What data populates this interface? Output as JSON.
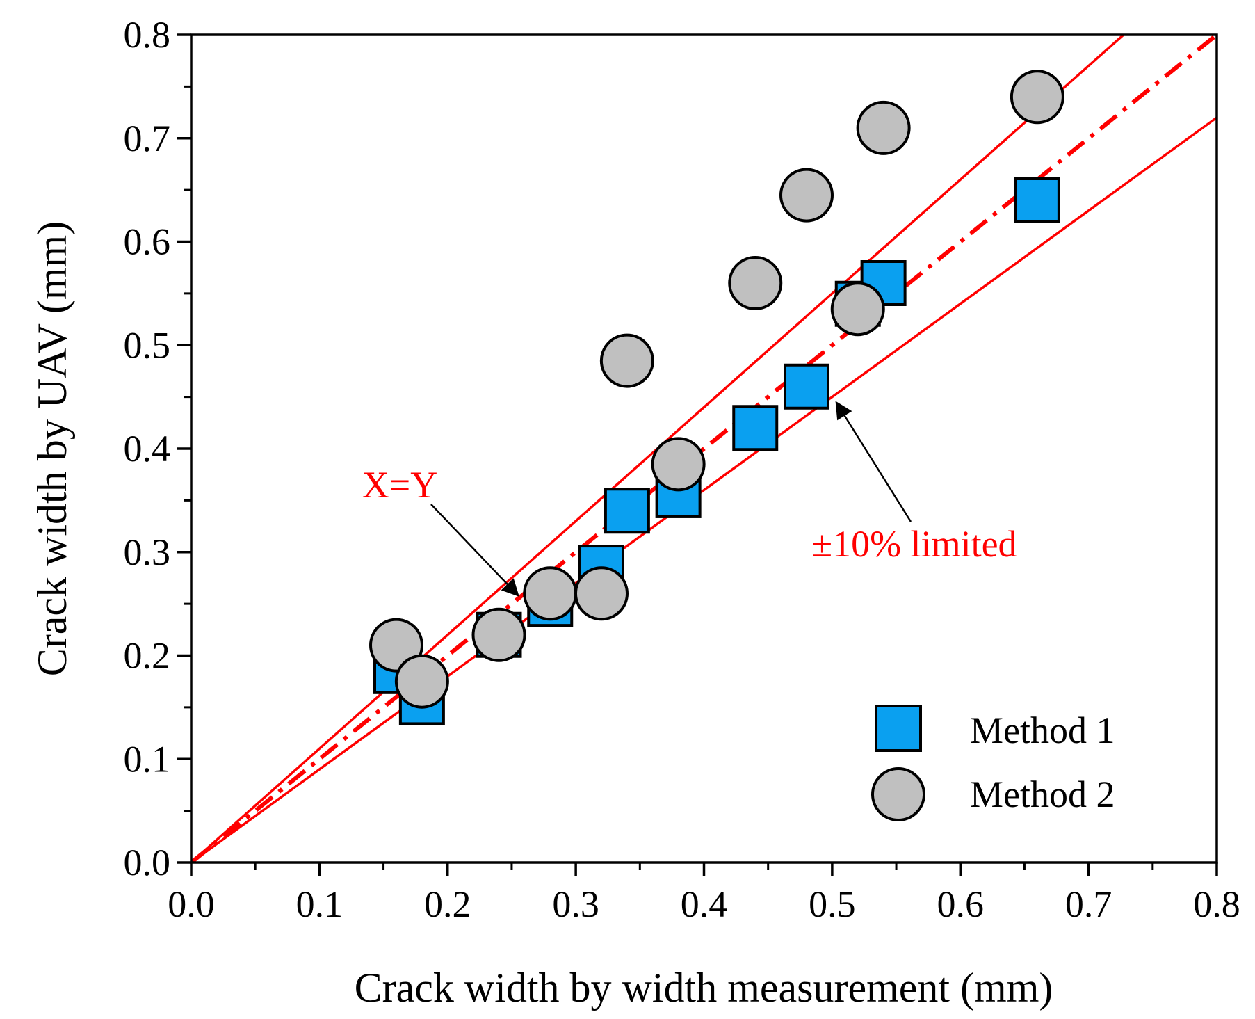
{
  "chart_data": {
    "type": "scatter",
    "title": "",
    "xlabel": "Crack width by width measurement (mm)",
    "ylabel": "Crack width by UAV (mm)",
    "xlim": [
      0.0,
      0.8
    ],
    "ylim": [
      0.0,
      0.8
    ],
    "xticks": [
      "0.0",
      "0.1",
      "0.2",
      "0.3",
      "0.4",
      "0.5",
      "0.6",
      "0.7",
      "0.8"
    ],
    "yticks": [
      "0.0",
      "0.1",
      "0.2",
      "0.3",
      "0.4",
      "0.5",
      "0.6",
      "0.7",
      "0.8"
    ],
    "grid": false,
    "legend_position": "bottom-right",
    "series": [
      {
        "name": "Method 1",
        "marker": "square",
        "color": "#0aa0f0",
        "points": [
          [
            0.16,
            0.185
          ],
          [
            0.18,
            0.155
          ],
          [
            0.24,
            0.22
          ],
          [
            0.28,
            0.25
          ],
          [
            0.32,
            0.285
          ],
          [
            0.34,
            0.34
          ],
          [
            0.38,
            0.355
          ],
          [
            0.44,
            0.42
          ],
          [
            0.48,
            0.46
          ],
          [
            0.52,
            0.54
          ],
          [
            0.54,
            0.56
          ],
          [
            0.66,
            0.64
          ]
        ]
      },
      {
        "name": "Method 2",
        "marker": "circle",
        "color": "#c0c0c0",
        "points": [
          [
            0.16,
            0.21
          ],
          [
            0.18,
            0.175
          ],
          [
            0.24,
            0.22
          ],
          [
            0.28,
            0.26
          ],
          [
            0.32,
            0.26
          ],
          [
            0.34,
            0.485
          ],
          [
            0.38,
            0.385
          ],
          [
            0.44,
            0.56
          ],
          [
            0.48,
            0.645
          ],
          [
            0.52,
            0.535
          ],
          [
            0.54,
            0.71
          ],
          [
            0.66,
            0.74
          ]
        ]
      }
    ],
    "reference_lines": [
      {
        "name": "X=Y",
        "slope": 1.0,
        "style": "dash-dot",
        "color": "#ff0000"
      },
      {
        "name": "+10%",
        "slope": 1.1,
        "style": "solid",
        "color": "#ff0000"
      },
      {
        "name": "-10%",
        "slope": 0.9,
        "style": "solid",
        "color": "#ff0000"
      }
    ],
    "annotations": [
      {
        "text": "X=Y",
        "color": "#ff0000",
        "arrow_to": [
          0.255,
          0.25
        ]
      },
      {
        "text": "±10% limited",
        "color": "#ff0000",
        "arrow_to": [
          0.5,
          0.45
        ]
      }
    ]
  }
}
